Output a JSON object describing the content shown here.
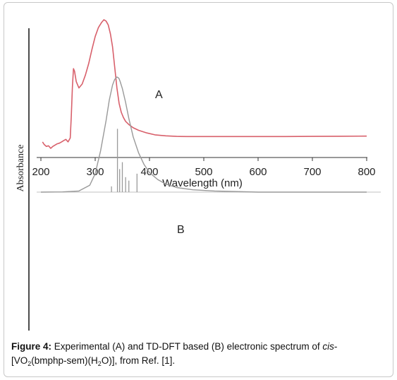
{
  "chart_data": [
    {
      "panel": "A",
      "type": "line",
      "title": "",
      "xlabel": "Wavelength (nm)",
      "ylabel": "Absorbance",
      "xlim": [
        200,
        800
      ],
      "x_ticks": [
        200,
        300,
        400,
        500,
        600,
        700,
        800
      ],
      "series": [
        {
          "name": "A",
          "color": "#d8606b",
          "x": [
            203,
            206,
            210,
            214,
            218,
            222,
            226,
            230,
            234,
            238,
            242,
            246,
            250,
            254,
            256,
            258,
            260,
            262,
            265,
            270,
            276,
            282,
            288,
            294,
            300,
            306,
            312,
            316,
            320,
            324,
            328,
            332,
            336,
            340,
            344,
            348,
            352,
            356,
            362,
            370,
            380,
            395,
            410,
            430,
            450,
            470,
            500,
            550,
            600,
            650,
            700,
            750,
            800
          ],
          "y": [
            0.05,
            0.03,
            0.015,
            0.02,
            0.0,
            0.015,
            0.025,
            0.035,
            0.04,
            0.05,
            0.06,
            0.07,
            0.05,
            0.08,
            0.25,
            0.48,
            0.62,
            0.6,
            0.52,
            0.47,
            0.5,
            0.57,
            0.66,
            0.77,
            0.87,
            0.94,
            0.98,
            1.0,
            0.99,
            0.96,
            0.89,
            0.79,
            0.63,
            0.47,
            0.35,
            0.28,
            0.24,
            0.21,
            0.185,
            0.16,
            0.14,
            0.12,
            0.105,
            0.097,
            0.093,
            0.092,
            0.092,
            0.092,
            0.092,
            0.092,
            0.093,
            0.094,
            0.095
          ]
        }
      ]
    },
    {
      "panel": "B",
      "type": "line",
      "title": "",
      "xlim": [
        200,
        800
      ],
      "series": [
        {
          "name": "B",
          "color": "#999999",
          "x": [
            200,
            240,
            270,
            290,
            300,
            310,
            320,
            326,
            332,
            336,
            340,
            342,
            344,
            346,
            350,
            356,
            362,
            370,
            380,
            390,
            400,
            415,
            430,
            450,
            480,
            520,
            600,
            700,
            800
          ],
          "y": [
            0.0,
            -0.002,
            -0.01,
            -0.06,
            -0.16,
            -0.36,
            -0.62,
            -0.8,
            -0.93,
            -0.98,
            -1.0,
            -0.995,
            -0.985,
            -0.96,
            -0.9,
            -0.78,
            -0.64,
            -0.48,
            -0.34,
            -0.24,
            -0.17,
            -0.11,
            -0.07,
            -0.04,
            -0.02,
            -0.01,
            0.0,
            0.0,
            0.0
          ]
        }
      ],
      "sticks": [
        {
          "x": 330,
          "y": -0.05
        },
        {
          "x": 341,
          "y": -0.55
        },
        {
          "x": 345,
          "y": -0.2
        },
        {
          "x": 350,
          "y": -0.26
        },
        {
          "x": 356,
          "y": -0.13
        },
        {
          "x": 362,
          "y": -0.1
        },
        {
          "x": 377,
          "y": -0.16
        }
      ]
    }
  ],
  "labels": {
    "panel_a": "A",
    "panel_b": "B",
    "ylabel": "Absorbance",
    "xlabel": "Wavelength (nm)"
  },
  "caption": {
    "figure_label": "Figure 4:",
    "text_1": " Experimental (A) and TD-DFT based (B) electronic spectrum of ",
    "italic": "cis",
    "text_2": "-",
    "text_3": "[VO",
    "sub_1": "2",
    "text_4": "(bmphp-sem)(H",
    "sub_2": "2",
    "text_5": "O)], from Ref. [1]."
  }
}
